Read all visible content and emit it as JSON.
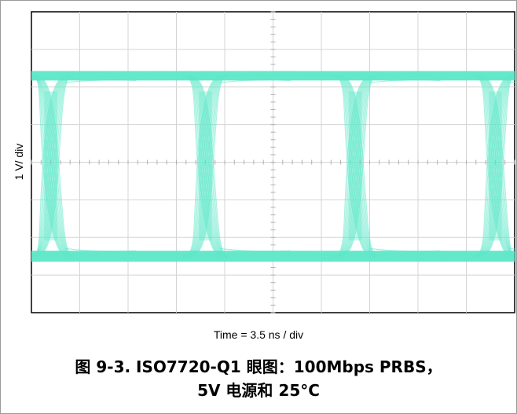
{
  "chart_data": {
    "type": "line",
    "title": "",
    "xlabel": "Time = 3.5 ns / div",
    "ylabel": "1 V/ div",
    "grid": true,
    "x_divisions": 10,
    "y_divisions": 8,
    "trace_color": "#5ee8c8",
    "levels_div": {
      "high": 2.3,
      "low": -2.5
    },
    "crossing_positions_div": [
      0.4,
      3.6,
      6.7,
      9.6
    ]
  },
  "caption": {
    "line1": "图 9-3. ISO7720-Q1 眼图：100Mbps PRBS，",
    "line2": "5V 电源和 25°C"
  }
}
